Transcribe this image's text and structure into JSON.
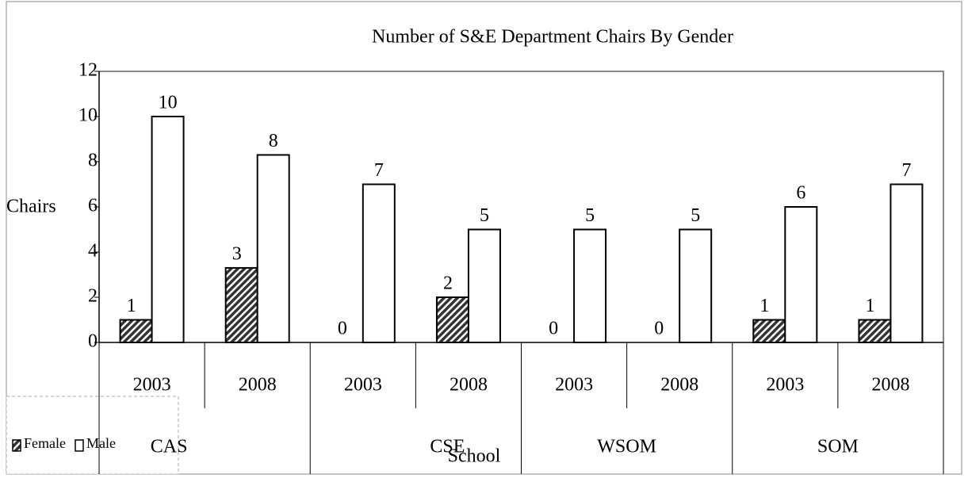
{
  "chart_data": {
    "type": "bar",
    "title": "Number of S&E Department Chairs By Gender",
    "y_label": "Chairs",
    "x_label": "School",
    "categories": [
      "2003",
      "2008",
      "2003",
      "2008",
      "2003",
      "2008",
      "2003",
      "2008"
    ],
    "groups": [
      "CAS",
      "CSE",
      "WSOM",
      "SOM"
    ],
    "series": [
      {
        "name": "Female",
        "color": "hatched",
        "values": [
          1,
          3.3,
          0,
          2,
          0,
          0,
          1,
          1
        ],
        "value_labels": [
          "1",
          "3",
          "0",
          "2",
          "0",
          "0",
          "1",
          "1"
        ]
      },
      {
        "name": "Male",
        "color": "#ffffff",
        "values": [
          10,
          8.3,
          7,
          5,
          5,
          5,
          6,
          7
        ],
        "value_labels": [
          "10",
          "8",
          "7",
          "5",
          "5",
          "5",
          "6",
          "7"
        ]
      }
    ],
    "ylim": [
      0,
      12
    ],
    "yticks": [
      0,
      2,
      4,
      6,
      8,
      10,
      12
    ],
    "grid": false,
    "legend": "bottom-left"
  }
}
